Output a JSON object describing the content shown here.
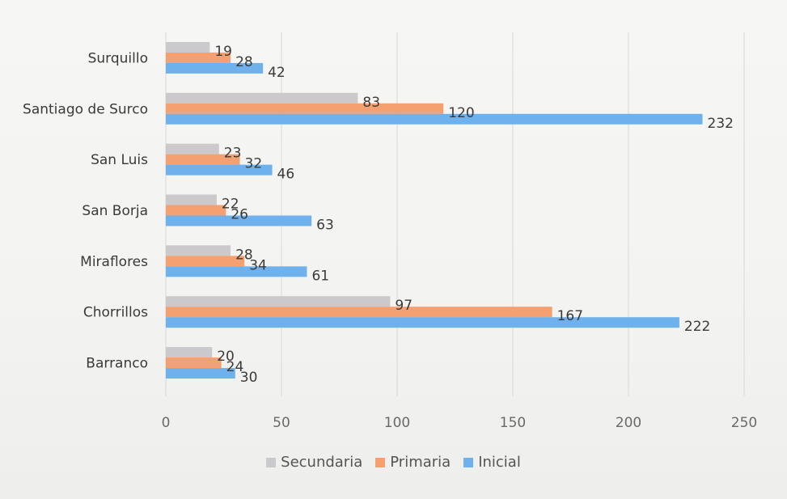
{
  "chart_data": {
    "type": "bar",
    "orientation": "horizontal",
    "categories": [
      "Surquillo",
      "Santiago de Surco",
      "San Luis",
      "San Borja",
      "Miraflores",
      "Chorrillos",
      "Barranco"
    ],
    "series": [
      {
        "name": "Secundaria",
        "color": "#cbc9cb",
        "values": [
          19,
          83,
          23,
          22,
          28,
          97,
          20
        ]
      },
      {
        "name": "Primaria",
        "color": "#f4a070",
        "values": [
          28,
          120,
          32,
          26,
          34,
          167,
          24
        ]
      },
      {
        "name": "Inicial",
        "color": "#6eb1ec",
        "values": [
          42,
          232,
          46,
          63,
          61,
          222,
          30
        ]
      }
    ],
    "xlim": [
      0,
      250
    ],
    "xticks": [
      "0",
      "50",
      "100",
      "150",
      "200",
      "250"
    ],
    "grid": true,
    "legend": "bottom"
  }
}
